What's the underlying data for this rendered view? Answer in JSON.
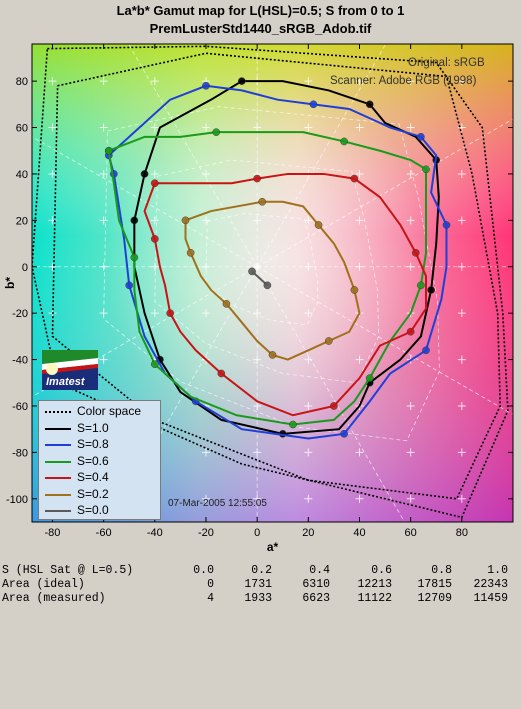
{
  "title_line1": "La*b* Gamut map for L(HSL)=0.5; S from 0 to 1",
  "title_line2": "PremLusterStd1440_sRGB_Adob.tif",
  "notes": {
    "original": "Original: sRGB",
    "scanner": "Scanner: Adobe RGB (1998)"
  },
  "datestamp": "07-Mar-2005 12:55:05",
  "logo_text": "Imatest",
  "colors": {
    "s10": "#000000",
    "s08": "#1f3fd8",
    "s06": "#1a9a1a",
    "s04": "#c81414",
    "s02": "#a0701a",
    "s00": "#5a5a5a"
  },
  "legend": [
    {
      "label": "Color space",
      "color": "#000000",
      "style": "dotted"
    },
    {
      "label": "S=1.0",
      "color": "#000000",
      "style": "solid"
    },
    {
      "label": "S=0.8",
      "color": "#1f3fd8",
      "style": "solid"
    },
    {
      "label": "S=0.6",
      "color": "#1a9a1a",
      "style": "solid"
    },
    {
      "label": "S=0.4",
      "color": "#c81414",
      "style": "solid"
    },
    {
      "label": "S=0.2",
      "color": "#a0701a",
      "style": "solid"
    },
    {
      "label": "S=0.0",
      "color": "#5a5a5a",
      "style": "solid"
    }
  ],
  "table": {
    "header_label": "S (HSL Sat @ L=0.5)",
    "header": [
      "0.0",
      "0.2",
      "0.4",
      "0.6",
      "0.8",
      "1.0"
    ],
    "ideal_label": "Area (ideal)",
    "ideal": [
      "0",
      "1731",
      "6310",
      "12213",
      "17815",
      "22343"
    ],
    "measured_label": "Area (measured)",
    "measured": [
      "4",
      "1933",
      "6623",
      "11122",
      "12709",
      "11459"
    ]
  },
  "chart_data": {
    "type": "line",
    "title": "La*b* Gamut map for L(HSL)=0.5; S from 0 to 1",
    "subtitle": "PremLusterStd1440_sRGB_Adob.tif",
    "xlabel": "a*",
    "ylabel": "b*",
    "xlim": [
      -88,
      100
    ],
    "ylim": [
      -110,
      96
    ],
    "xticks": [
      -80,
      -60,
      -40,
      -20,
      0,
      20,
      40,
      60,
      80
    ],
    "yticks": [
      -100,
      -80,
      -60,
      -40,
      -20,
      0,
      20,
      40,
      60,
      80
    ],
    "grid": true,
    "legend_position": "bottom-left",
    "colorspace_outlines": [
      [
        [
          -82,
          94
        ],
        [
          -20,
          95
        ],
        [
          70,
          88
        ],
        [
          88,
          60
        ],
        [
          96,
          -20
        ],
        [
          98,
          -62
        ],
        [
          80,
          -108
        ],
        [
          -6,
          -85
        ],
        [
          -78,
          -50
        ],
        [
          -88,
          0
        ],
        [
          -82,
          94
        ]
      ],
      [
        [
          -78,
          78
        ],
        [
          -20,
          92
        ],
        [
          74,
          82
        ],
        [
          84,
          40
        ],
        [
          94,
          -20
        ],
        [
          95,
          -60
        ],
        [
          78,
          -100
        ],
        [
          20,
          -92
        ],
        [
          -40,
          -66
        ],
        [
          -80,
          -30
        ],
        [
          -78,
          78
        ]
      ]
    ],
    "series": [
      {
        "name": "S=1.0",
        "points": [
          [
            -44,
            40
          ],
          [
            -38,
            60
          ],
          [
            -18,
            72
          ],
          [
            -6,
            80
          ],
          [
            10,
            80
          ],
          [
            28,
            76
          ],
          [
            44,
            70
          ],
          [
            50,
            62
          ],
          [
            62,
            56
          ],
          [
            70,
            46
          ],
          [
            71,
            30
          ],
          [
            70,
            10
          ],
          [
            68,
            -10
          ],
          [
            64,
            -30
          ],
          [
            56,
            -40
          ],
          [
            44,
            -50
          ],
          [
            40,
            -60
          ],
          [
            32,
            -70
          ],
          [
            10,
            -72
          ],
          [
            -14,
            -66
          ],
          [
            -30,
            -54
          ],
          [
            -38,
            -40
          ],
          [
            -44,
            -20
          ],
          [
            -48,
            0
          ],
          [
            -48,
            20
          ],
          [
            -44,
            40
          ]
        ]
      },
      {
        "name": "S=0.8",
        "points": [
          [
            -58,
            48
          ],
          [
            -48,
            58
          ],
          [
            -34,
            72
          ],
          [
            -20,
            78
          ],
          [
            -6,
            76
          ],
          [
            8,
            72
          ],
          [
            22,
            70
          ],
          [
            36,
            68
          ],
          [
            52,
            60
          ],
          [
            64,
            56
          ],
          [
            70,
            48
          ],
          [
            68,
            32
          ],
          [
            74,
            18
          ],
          [
            74,
            0
          ],
          [
            72,
            -14
          ],
          [
            66,
            -36
          ],
          [
            52,
            -46
          ],
          [
            44,
            -58
          ],
          [
            34,
            -72
          ],
          [
            20,
            -74
          ],
          [
            -6,
            -70
          ],
          [
            -24,
            -58
          ],
          [
            -36,
            -46
          ],
          [
            -44,
            -30
          ],
          [
            -50,
            -8
          ],
          [
            -52,
            12
          ],
          [
            -54,
            26
          ],
          [
            -56,
            40
          ],
          [
            -58,
            48
          ]
        ]
      },
      {
        "name": "S=0.6",
        "points": [
          [
            -58,
            50
          ],
          [
            -44,
            56
          ],
          [
            -30,
            56
          ],
          [
            -16,
            58
          ],
          [
            0,
            58
          ],
          [
            18,
            58
          ],
          [
            34,
            54
          ],
          [
            48,
            50
          ],
          [
            60,
            46
          ],
          [
            66,
            42
          ],
          [
            66,
            24
          ],
          [
            66,
            6
          ],
          [
            64,
            -8
          ],
          [
            60,
            -20
          ],
          [
            52,
            -32
          ],
          [
            44,
            -48
          ],
          [
            38,
            -58
          ],
          [
            30,
            -66
          ],
          [
            14,
            -68
          ],
          [
            -8,
            -64
          ],
          [
            -26,
            -56
          ],
          [
            -40,
            -42
          ],
          [
            -46,
            -28
          ],
          [
            -48,
            -10
          ],
          [
            -48,
            4
          ],
          [
            -54,
            20
          ],
          [
            -56,
            36
          ],
          [
            -58,
            50
          ]
        ]
      },
      {
        "name": "S=0.4",
        "points": [
          [
            -40,
            36
          ],
          [
            -26,
            36
          ],
          [
            -10,
            36
          ],
          [
            0,
            38
          ],
          [
            12,
            40
          ],
          [
            26,
            40
          ],
          [
            38,
            38
          ],
          [
            48,
            30
          ],
          [
            56,
            18
          ],
          [
            62,
            6
          ],
          [
            66,
            -4
          ],
          [
            66,
            -18
          ],
          [
            60,
            -28
          ],
          [
            48,
            -34
          ],
          [
            40,
            -48
          ],
          [
            30,
            -60
          ],
          [
            14,
            -64
          ],
          [
            0,
            -58
          ],
          [
            -14,
            -46
          ],
          [
            -24,
            -36
          ],
          [
            -30,
            -28
          ],
          [
            -34,
            -20
          ],
          [
            -36,
            -8
          ],
          [
            -38,
            0
          ],
          [
            -40,
            12
          ],
          [
            -44,
            24
          ],
          [
            -40,
            36
          ]
        ]
      },
      {
        "name": "S=0.2",
        "points": [
          [
            -28,
            20
          ],
          [
            -18,
            24
          ],
          [
            -8,
            26
          ],
          [
            2,
            28
          ],
          [
            10,
            28
          ],
          [
            18,
            26
          ],
          [
            24,
            18
          ],
          [
            30,
            10
          ],
          [
            34,
            2
          ],
          [
            38,
            -10
          ],
          [
            40,
            -20
          ],
          [
            36,
            -28
          ],
          [
            28,
            -32
          ],
          [
            20,
            -36
          ],
          [
            12,
            -40
          ],
          [
            6,
            -38
          ],
          [
            0,
            -32
          ],
          [
            -6,
            -24
          ],
          [
            -12,
            -16
          ],
          [
            -18,
            -10
          ],
          [
            -22,
            -4
          ],
          [
            -26,
            6
          ],
          [
            -28,
            12
          ],
          [
            -28,
            20
          ]
        ]
      },
      {
        "name": "S=0.0",
        "points": [
          [
            -2,
            -2
          ],
          [
            0,
            -4
          ],
          [
            2,
            -6
          ],
          [
            4,
            -8
          ]
        ]
      }
    ]
  }
}
